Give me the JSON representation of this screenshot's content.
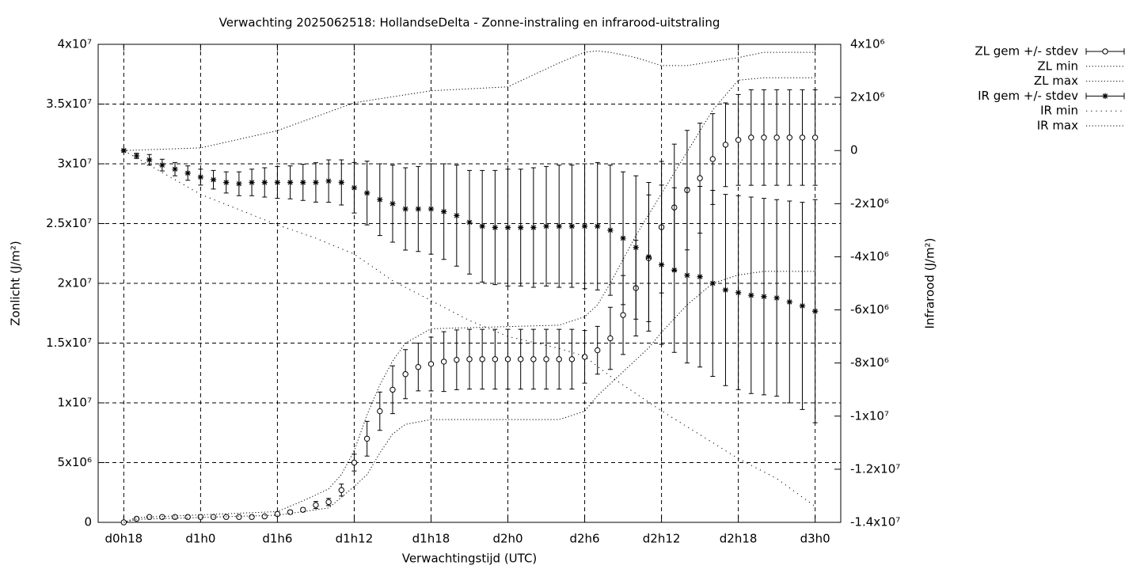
{
  "chart_data": {
    "type": "errorbar_line",
    "title": "Verwachting 2025062518: HollandseDelta - Zonne-instraling en infrarood-uitstraling",
    "xlabel": "Verwachtingstijd (UTC)",
    "ylabel": "Zonlicht (J/m²)",
    "y2label": "Infrarood (J/m²)",
    "grid": true,
    "legend": "outside-top-right",
    "xlim": [
      -2,
      56
    ],
    "xticks": [
      {
        "value": 0,
        "label": "d0h18"
      },
      {
        "value": 6,
        "label": "d1h0"
      },
      {
        "value": 12,
        "label": "d1h6"
      },
      {
        "value": 18,
        "label": "d1h12"
      },
      {
        "value": 24,
        "label": "d1h18"
      },
      {
        "value": 30,
        "label": "d2h0"
      },
      {
        "value": 36,
        "label": "d2h6"
      },
      {
        "value": 42,
        "label": "d2h12"
      },
      {
        "value": 48,
        "label": "d2h18"
      },
      {
        "value": 54,
        "label": "d3h0"
      }
    ],
    "ylim": [
      0,
      40000000.0
    ],
    "yticks": [
      0,
      {
        "value": 5000000.0,
        "label": "5x10⁶"
      },
      {
        "value": 10000000.0,
        "label": "1x10⁷"
      },
      {
        "value": 15000000.0,
        "label": "1.5x10⁷"
      },
      {
        "value": 20000000.0,
        "label": "2x10⁷"
      },
      {
        "value": 25000000.0,
        "label": "2.5x10⁷"
      },
      {
        "value": 30000000.0,
        "label": "3x10⁷"
      },
      {
        "value": 35000000.0,
        "label": "3.5x10⁷"
      },
      {
        "value": 40000000.0,
        "label": "4x10⁷"
      }
    ],
    "y2lim": [
      -14000000.0,
      4000000.0
    ],
    "y2ticks": [
      {
        "value": -14000000.0,
        "label": "-1.4x10⁷"
      },
      {
        "value": -12000000.0,
        "label": "-1.2x10⁷"
      },
      {
        "value": -10000000.0,
        "label": "-1x10⁷"
      },
      {
        "value": -8000000.0,
        "label": "-8x10⁶"
      },
      {
        "value": -6000000.0,
        "label": "-6x10⁶"
      },
      {
        "value": -4000000.0,
        "label": "-4x10⁶"
      },
      {
        "value": -2000000.0,
        "label": "-2x10⁶"
      },
      0,
      {
        "value": 2000000.0,
        "label": "2x10⁶"
      },
      {
        "value": 4000000.0,
        "label": "4x10⁶"
      }
    ],
    "x": [
      0,
      1,
      2,
      3,
      4,
      5,
      6,
      7,
      8,
      9,
      10,
      11,
      12,
      13,
      14,
      15,
      16,
      17,
      18,
      19,
      20,
      21,
      22,
      23,
      24,
      25,
      26,
      27,
      28,
      29,
      30,
      31,
      32,
      33,
      34,
      35,
      36,
      37,
      38,
      39,
      40,
      41,
      42,
      43,
      44,
      45,
      46,
      47,
      48,
      49,
      50,
      51,
      52,
      53,
      54
    ],
    "series": [
      {
        "name": "ZL gem +/- stdev",
        "style": "errorbars",
        "marker": "circle",
        "color": "#000000",
        "axis": "y",
        "values": [
          0,
          300000.0,
          450000.0,
          450000.0,
          450000.0,
          450000.0,
          450000.0,
          450000.0,
          450000.0,
          450000.0,
          450000.0,
          500000.0,
          700000.0,
          850000.0,
          1050000.0,
          1450000.0,
          1700000.0,
          2700000.0,
          5000000.0,
          7000000.0,
          9300000.0,
          11100000.0,
          12400000.0,
          13000000.0,
          13250000.0,
          13450000.0,
          13600000.0,
          13650000.0,
          13650000.0,
          13650000.0,
          13650000.0,
          13650000.0,
          13650000.0,
          13650000.0,
          13650000.0,
          13650000.0,
          13850000.0,
          14400000.0,
          15400000.0,
          17350000.0,
          19600000.0,
          22100000.0,
          24700000.0,
          26350000.0,
          27800000.0,
          28800000.0,
          30400000.0,
          31600000.0,
          32000000.0,
          32200000.0,
          32200000.0,
          32200000.0,
          32200000.0,
          32200000.0,
          32200000.0
        ],
        "errors": [
          0,
          100000.0,
          100000.0,
          100000.0,
          100000.0,
          100000.0,
          100000.0,
          100000.0,
          100000.0,
          100000.0,
          100000.0,
          100000.0,
          150000.0,
          150000.0,
          150000.0,
          300000.0,
          300000.0,
          500000.0,
          700000.0,
          1450000.0,
          1600000.0,
          2000000.0,
          2050000.0,
          2000000.0,
          2250000.0,
          2500000.0,
          2500000.0,
          2500000.0,
          2500000.0,
          2500000.0,
          2500000.0,
          2500000.0,
          2500000.0,
          2500000.0,
          2500000.0,
          2500000.0,
          2200000.0,
          2000000.0,
          2600000.0,
          3300000.0,
          4000000.0,
          5300000.0,
          5500000.0,
          5300000.0,
          5000000.0,
          4600000.0,
          3800000.0,
          3500000.0,
          3800000.0,
          4000000.0,
          4000000.0,
          4000000.0,
          4000000.0,
          4000000.0,
          4000000.0
        ]
      },
      {
        "name": "ZL min",
        "style": "dotted",
        "color": "#000000",
        "axis": "y",
        "x": [
          0,
          1,
          12,
          16,
          18,
          19,
          20,
          21,
          22,
          24,
          34,
          36,
          37,
          39,
          41,
          42,
          44,
          46,
          48,
          50,
          54
        ],
        "values": [
          0,
          250000.0,
          600000.0,
          1200000.0,
          3000000.0,
          4000000.0,
          5800000.0,
          7400000.0,
          8200000.0,
          8600000.0,
          8600000.0,
          9300000.0,
          10600000.0,
          12600000.0,
          14600000.0,
          15900000.0,
          18200000.0,
          20000000.0,
          20700000.0,
          21000000.0,
          21000000.0
        ]
      },
      {
        "name": "ZL max",
        "style": "dotted",
        "color": "#000000",
        "axis": "y",
        "x": [
          0,
          1,
          12,
          14,
          16,
          17,
          18,
          19,
          20,
          21,
          22,
          24,
          34,
          36,
          37,
          38,
          39,
          40,
          42,
          44,
          46,
          48,
          50,
          54
        ],
        "values": [
          0,
          400000.0,
          900000.0,
          1800000.0,
          2800000.0,
          4000000.0,
          6000000.0,
          9000000.0,
          11500000.0,
          13500000.0,
          15000000.0,
          16200000.0,
          16500000.0,
          17200000.0,
          18200000.0,
          20000000.0,
          22000000.0,
          24000000.0,
          27500000.0,
          31000000.0,
          34500000.0,
          37000000.0,
          37200000.0,
          37200000.0
        ]
      },
      {
        "name": "IR gem +/- stdev",
        "style": "errorbars",
        "marker": "star",
        "color": "#000000",
        "axis": "y2",
        "values": [
          0,
          -200000.0,
          -350000.0,
          -550000.0,
          -700000.0,
          -850000.0,
          -1000000.0,
          -1100000.0,
          -1200000.0,
          -1250000.0,
          -1200000.0,
          -1200000.0,
          -1200000.0,
          -1200000.0,
          -1200000.0,
          -1200000.0,
          -1150000.0,
          -1200000.0,
          -1400000.0,
          -1600000.0,
          -1850000.0,
          -2000000.0,
          -2200000.0,
          -2200000.0,
          -2200000.0,
          -2300000.0,
          -2450000.0,
          -2700000.0,
          -2850000.0,
          -2900000.0,
          -2900000.0,
          -2900000.0,
          -2900000.0,
          -2850000.0,
          -2850000.0,
          -2850000.0,
          -2850000.0,
          -2850000.0,
          -3000000.0,
          -3300000.0,
          -3650000.0,
          -4000000.0,
          -4300000.0,
          -4500000.0,
          -4700000.0,
          -4750000.0,
          -5000000.0,
          -5250000.0,
          -5350000.0,
          -5450000.0,
          -5500000.0,
          -5550000.0,
          -5700000.0,
          -5850000.0,
          -6050000.0
        ],
        "errors": [
          50000.0,
          100000.0,
          200000.0,
          220000.0,
          250000.0,
          270000.0,
          300000.0,
          350000.0,
          400000.0,
          450000.0,
          500000.0,
          550000.0,
          600000.0,
          620000.0,
          680000.0,
          740000.0,
          800000.0,
          850000.0,
          950000.0,
          1200000.0,
          1350000.0,
          1450000.0,
          1550000.0,
          1600000.0,
          1700000.0,
          1800000.0,
          1900000.0,
          1950000.0,
          2100000.0,
          2150000.0,
          2200000.0,
          2200000.0,
          2250000.0,
          2250000.0,
          2300000.0,
          2300000.0,
          2350000.0,
          2400000.0,
          2450000.0,
          2500000.0,
          2700000.0,
          2800000.0,
          3000000.0,
          3100000.0,
          3300000.0,
          3400000.0,
          3500000.0,
          3600000.0,
          3650000.0,
          3700000.0,
          3700000.0,
          3700000.0,
          3800000.0,
          3900000.0,
          4200000.0
        ]
      },
      {
        "name": "IR min",
        "style": "dotted-sparse",
        "color": "#000000",
        "axis": "y2",
        "x": [
          0,
          6,
          12,
          15,
          18,
          21,
          24,
          27,
          30,
          34,
          36,
          38,
          42,
          44,
          48,
          51,
          54
        ],
        "values": [
          0,
          -1650000.0,
          -2800000.0,
          -3300000.0,
          -3900000.0,
          -4900000.0,
          -5650000.0,
          -6400000.0,
          -7000000.0,
          -7450000.0,
          -7750000.0,
          -8500000.0,
          -9800000.0,
          -10400000.0,
          -11600000.0,
          -12350000.0,
          -13400000.0
        ]
      },
      {
        "name": "IR max",
        "style": "dotted",
        "color": "#000000",
        "axis": "y2",
        "x": [
          0,
          6,
          12,
          18,
          24,
          30,
          34,
          36,
          37,
          38,
          40,
          42,
          44,
          46,
          48,
          50,
          54
        ],
        "values": [
          0,
          100000.0,
          750000.0,
          1800000.0,
          2250000.0,
          2400000.0,
          3300000.0,
          3700000.0,
          3750000.0,
          3700000.0,
          3500000.0,
          3200000.0,
          3200000.0,
          3350000.0,
          3500000.0,
          3700000.0,
          3700000.0
        ]
      }
    ]
  }
}
